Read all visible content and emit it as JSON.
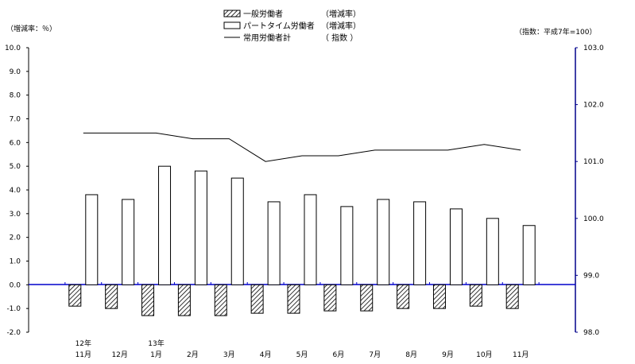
{
  "chart_data": {
    "type": "bar",
    "left_axis_unit": "（増減率：％）",
    "right_axis_unit": "（指数：平成7年=100）",
    "categories": [
      {
        "top": "12年",
        "bottom": "11月"
      },
      {
        "top": "",
        "bottom": "12月"
      },
      {
        "top": "13年",
        "bottom": "1月"
      },
      {
        "top": "",
        "bottom": "2月"
      },
      {
        "top": "",
        "bottom": "3月"
      },
      {
        "top": "",
        "bottom": "4月"
      },
      {
        "top": "",
        "bottom": "5月"
      },
      {
        "top": "",
        "bottom": "6月"
      },
      {
        "top": "",
        "bottom": "7月"
      },
      {
        "top": "",
        "bottom": "8月"
      },
      {
        "top": "",
        "bottom": "9月"
      },
      {
        "top": "",
        "bottom": "10月"
      },
      {
        "top": "",
        "bottom": "11月"
      }
    ],
    "ylim_left": [
      -2.0,
      10.0
    ],
    "yticks_left": [
      "10.0",
      "9.0",
      "8.0",
      "7.0",
      "6.0",
      "5.0",
      "4.0",
      "3.0",
      "2.0",
      "1.0",
      "0.0",
      "-1.0",
      "-2.0"
    ],
    "ylim_right": [
      98.0,
      103.0
    ],
    "yticks_right": [
      "103.0",
      "102.0",
      "101.0",
      "100.0",
      "99.0",
      "98.0"
    ],
    "series": [
      {
        "name": "一般労働者",
        "legend_unit": "（増減率）",
        "kind": "bar",
        "pattern": "hatched",
        "axis": "left",
        "values": [
          -0.9,
          -1.0,
          -1.3,
          -1.3,
          -1.3,
          -1.2,
          -1.2,
          -1.1,
          -1.1,
          -1.0,
          -1.0,
          -0.9,
          -1.0
        ]
      },
      {
        "name": "パートタイム労働者",
        "legend_unit": "（増減率）",
        "kind": "bar",
        "pattern": "open",
        "axis": "left",
        "values": [
          3.8,
          3.6,
          5.0,
          4.8,
          4.5,
          3.5,
          3.8,
          3.3,
          3.6,
          3.5,
          3.2,
          2.8,
          2.5
        ]
      },
      {
        "name": "常用労働者計",
        "legend_unit": "（ 指数 ）",
        "kind": "line",
        "axis": "right",
        "values": [
          101.5,
          101.5,
          101.5,
          101.4,
          101.4,
          101.0,
          101.1,
          101.1,
          101.2,
          101.2,
          101.2,
          101.3,
          101.2
        ]
      }
    ]
  }
}
